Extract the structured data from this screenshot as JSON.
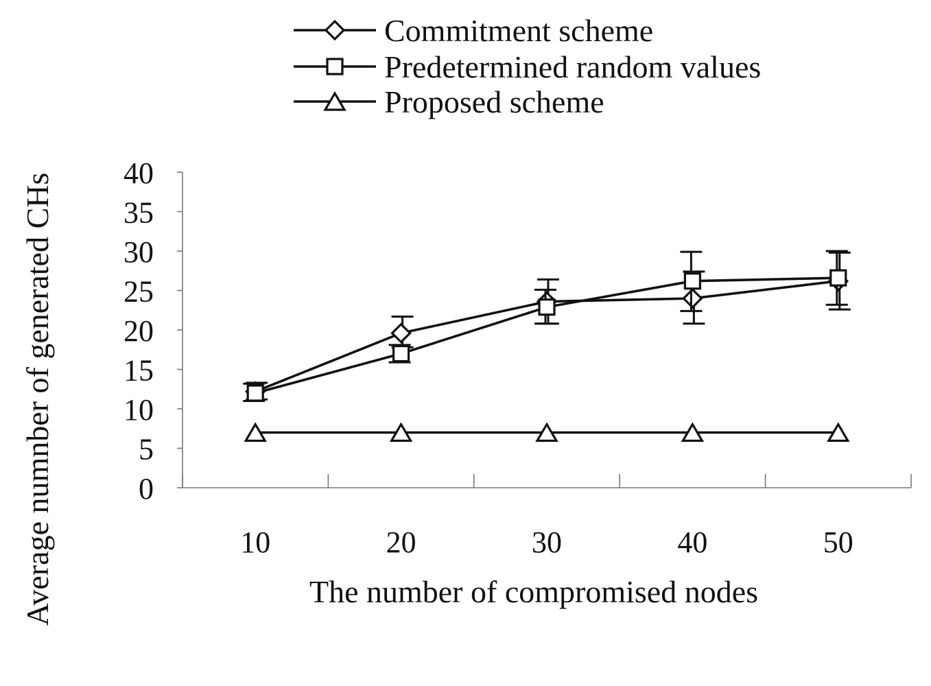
{
  "chart_data": {
    "type": "line",
    "title": "",
    "xlabel": "The number of compromised nodes",
    "ylabel": "Average numnber of generated CHs",
    "categories": [
      "10",
      "20",
      "30",
      "40",
      "50"
    ],
    "ylim": [
      0,
      40
    ],
    "yticks": [
      0,
      5,
      10,
      15,
      20,
      25,
      30,
      35,
      40
    ],
    "ytick_labels": [
      "0",
      "5",
      "10",
      "15",
      "20",
      "25",
      "30",
      "35",
      "40"
    ],
    "grid": false,
    "legend_position": "top-center",
    "series": [
      {
        "name": "Commitment scheme",
        "marker": "diamond",
        "values": [
          12.2,
          19.6,
          23.6,
          24.0,
          26.2
        ],
        "error_low": [
          11.2,
          17.8,
          20.8,
          20.8,
          22.6
        ],
        "error_high": [
          13.3,
          21.7,
          26.4,
          27.4,
          29.8
        ]
      },
      {
        "name": "Predetermined random values",
        "marker": "square",
        "values": [
          12.0,
          17.0,
          22.9,
          26.2,
          26.6
        ],
        "error_low": [
          11.0,
          15.9,
          20.8,
          22.4,
          23.2
        ],
        "error_high": [
          13.2,
          18.1,
          25.1,
          29.9,
          30.0
        ]
      },
      {
        "name": "Proposed scheme",
        "marker": "triangle",
        "values": [
          7.0,
          7.0,
          7.0,
          7.0,
          7.0
        ]
      }
    ]
  },
  "colors": {
    "line": "#111111",
    "axis": "#777777",
    "background": "#ffffff"
  }
}
